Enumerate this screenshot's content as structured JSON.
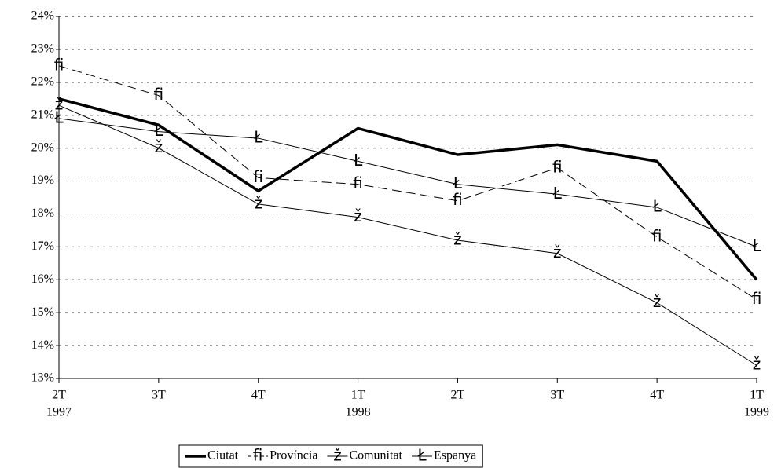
{
  "chart_data": {
    "type": "line",
    "categories": [
      "2T",
      "3T",
      "4T",
      "1T",
      "2T",
      "3T",
      "4T",
      "1T"
    ],
    "category_years": [
      "1997",
      null,
      null,
      "1998",
      null,
      null,
      null,
      "1999"
    ],
    "ylim": [
      13,
      24
    ],
    "yticks": [
      {
        "value": 13,
        "label": "13%"
      },
      {
        "value": 14,
        "label": "14%"
      },
      {
        "value": 15,
        "label": "15%"
      },
      {
        "value": 16,
        "label": "16%"
      },
      {
        "value": 17,
        "label": "17%"
      },
      {
        "value": 18,
        "label": "18%"
      },
      {
        "value": 19,
        "label": "19%"
      },
      {
        "value": 20,
        "label": "20%"
      },
      {
        "value": 21,
        "label": "21%"
      },
      {
        "value": 22,
        "label": "22%"
      },
      {
        "value": 23,
        "label": "23%"
      },
      {
        "value": 24,
        "label": "24%"
      }
    ],
    "grid": true,
    "legend": "bottom",
    "series": [
      {
        "name": "Ciutat",
        "color": "#000000",
        "width": 3.5,
        "dash": "none",
        "values": [
          21.5,
          20.7,
          18.7,
          20.6,
          19.8,
          20.1,
          19.6,
          16.0
        ]
      },
      {
        "name": "Província",
        "color": "#000000",
        "width": 1,
        "dash": "12 6",
        "marker": "fi",
        "values": [
          22.5,
          21.6,
          19.1,
          18.9,
          18.4,
          19.4,
          17.3,
          15.4
        ]
      },
      {
        "name": "Comunitat",
        "color": "#000000",
        "width": 1,
        "dash": "none",
        "marker": "ž",
        "values": [
          21.3,
          20.0,
          18.3,
          17.9,
          17.2,
          16.8,
          15.3,
          13.4
        ]
      },
      {
        "name": "Espanya",
        "color": "#000000",
        "width": 1,
        "dash": "none",
        "marker": "Ł",
        "values": [
          20.9,
          20.5,
          20.3,
          19.6,
          18.9,
          18.6,
          18.2,
          17.0
        ]
      }
    ]
  }
}
